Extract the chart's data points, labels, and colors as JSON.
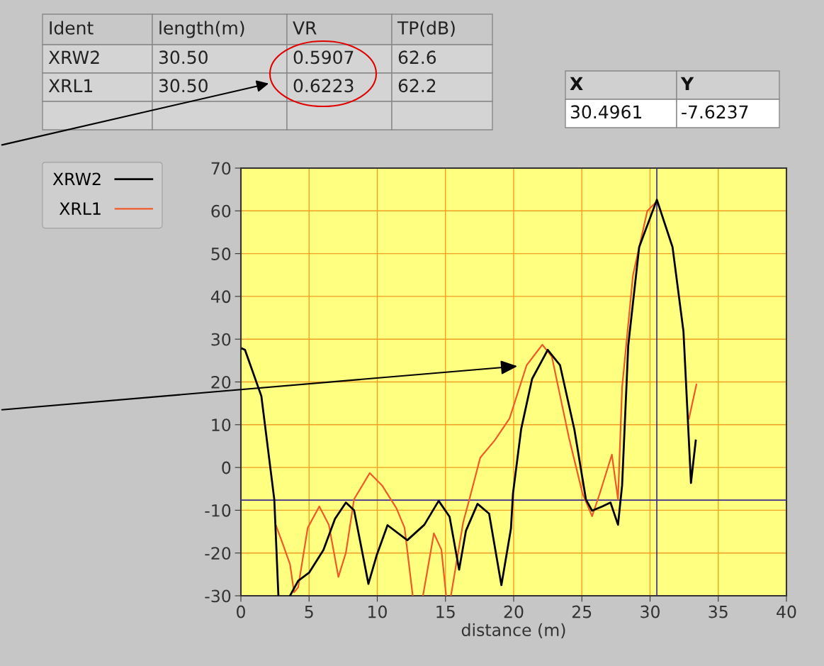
{
  "chart_data": {
    "type": "line",
    "xlabel": "distance (m)",
    "xlim": [
      0,
      40
    ],
    "xticks": [
      0,
      5,
      10,
      15,
      20,
      25,
      30,
      35,
      40
    ],
    "ylim": [
      -30,
      70
    ],
    "yticks": [
      -30,
      -20,
      -10,
      0,
      10,
      20,
      30,
      40,
      50,
      60,
      70
    ],
    "grid": true,
    "legend": "top left",
    "line_style": "solid",
    "series": [
      {
        "name": "XRW2",
        "color": "#000000",
        "x": [
          0.1,
          0.3,
          1.5,
          2.45,
          2.75,
          null,
          3.6,
          4.2,
          5.0,
          6.05,
          6.9,
          7.7,
          8.3,
          9.35,
          9.95,
          10.75,
          12.2,
          13.45,
          14.5,
          15.3,
          16.0,
          16.5,
          17.35,
          18.2,
          19.1,
          19.8,
          19.95,
          20.55,
          21.35,
          22.5,
          23.4,
          24.45,
          25.3,
          25.75,
          26.5,
          27.1,
          27.65,
          27.95,
          28.4,
          29.2,
          30.5,
          31.65,
          32.45,
          33.0,
          33.35
        ],
        "values": [
          27.8,
          27.5,
          16.7,
          -7.5,
          -30,
          null,
          -30,
          -26.5,
          -24.6,
          -19.3,
          -12,
          -8.2,
          -10,
          -27.2,
          -20.6,
          -13.5,
          -17,
          -13.4,
          -7.8,
          -11.5,
          -23.9,
          -14.8,
          -8.5,
          -10.8,
          -27.5,
          -14.3,
          -6.1,
          9,
          20.7,
          27.5,
          23.9,
          8.9,
          -7.5,
          -10.1,
          -9.1,
          -8.2,
          -13.4,
          -4.2,
          28.5,
          51.5,
          62.6,
          51.5,
          31.8,
          -3.6,
          6.3
        ]
      },
      {
        "name": "XRL1",
        "color": "#f05a28",
        "x": [
          2.55,
          2.95,
          3.6,
          3.9,
          4.2,
          4.9,
          5.75,
          6.45,
          7.15,
          7.7,
          8.3,
          9.45,
          10.35,
          11.4,
          12.0,
          12.6,
          null,
          13.35,
          14.15,
          14.7,
          15.05,
          null,
          15.4,
          16.3,
          16.75,
          17.55,
          18.6,
          19.7,
          20.95,
          22.1,
          22.8,
          24.05,
          25.05,
          25.75,
          26.3,
          27.2,
          27.65,
          27.95,
          28.75,
          29.8,
          30.5,
          31.65,
          32.45,
          32.85,
          33.4
        ],
        "values": [
          -13.4,
          -16.8,
          -22.6,
          -29.2,
          -28,
          -14.1,
          -9.1,
          -13.4,
          -25.6,
          -19.9,
          -7.4,
          -1.3,
          -4.2,
          -9.5,
          -14.1,
          -30,
          null,
          -30,
          -15.4,
          -19.2,
          -30,
          null,
          -30,
          -12.8,
          -7.5,
          2.3,
          6.3,
          11.5,
          23.9,
          28.7,
          25.9,
          7,
          -6.1,
          -11.4,
          -6.2,
          3,
          -7.5,
          18.7,
          45,
          60,
          62.2,
          null,
          null,
          11.4,
          19.4
        ]
      }
    ],
    "ref_lines": [
      {
        "axis": "x",
        "value": 30.4961,
        "color": "#3c2c8c"
      },
      {
        "axis": "y",
        "value": -7.6237,
        "color": "#3c2c8c"
      }
    ],
    "annotations": [
      "Ident",
      "length(m)",
      "VR",
      "TP(dB)",
      "XRW2",
      "30.50",
      "0.5907",
      "62.6",
      "XRL1",
      "30.50",
      "0.6223",
      "62.2",
      "X",
      "Y",
      "30.4961",
      "-7.6237"
    ]
  }
}
